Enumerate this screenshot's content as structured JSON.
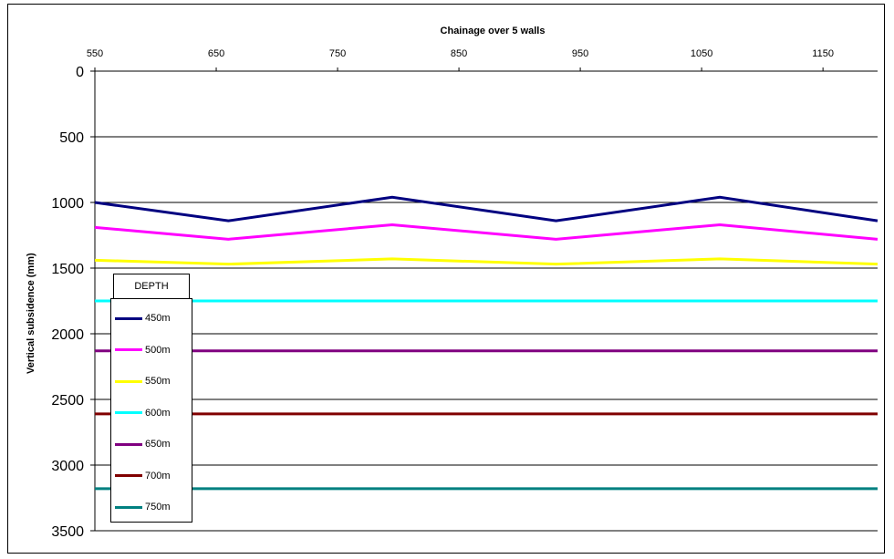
{
  "chart_data": {
    "type": "line",
    "title": "Chainage over 5 walls",
    "xlabel": "Chainage over 5 walls",
    "ylabel": "Vertical subsidence (mm)",
    "x_ticks": [
      "550",
      "650",
      "750",
      "850",
      "950",
      "1050",
      "1150"
    ],
    "y_ticks": [
      "0",
      "500",
      "1000",
      "1500",
      "2000",
      "2500",
      "3000",
      "3500"
    ],
    "xlim": [
      550,
      1195
    ],
    "ylim": [
      0,
      3500
    ],
    "y_inverted": true,
    "x_axis_position": "top",
    "grid": "horizontal",
    "legend": {
      "title": "DEPTH",
      "position": "bottom-left"
    },
    "x": [
      550,
      660,
      795,
      930,
      1065,
      1195
    ],
    "series": [
      {
        "name": "450m",
        "color": "#000080",
        "values": [
          1000,
          1140,
          960,
          1140,
          960,
          1140
        ]
      },
      {
        "name": "500m",
        "color": "#ff00ff",
        "values": [
          1190,
          1280,
          1170,
          1280,
          1170,
          1280
        ]
      },
      {
        "name": "550m",
        "color": "#ffff00",
        "values": [
          1440,
          1470,
          1430,
          1470,
          1430,
          1470
        ]
      },
      {
        "name": "600m",
        "color": "#00ffff",
        "values": [
          1750,
          1750,
          1750,
          1750,
          1750,
          1750
        ]
      },
      {
        "name": "650m",
        "color": "#800080",
        "values": [
          2130,
          2130,
          2130,
          2130,
          2130,
          2130
        ]
      },
      {
        "name": "700m",
        "color": "#800000",
        "values": [
          2610,
          2610,
          2610,
          2610,
          2610,
          2610
        ]
      },
      {
        "name": "750m",
        "color": "#008080",
        "values": [
          3180,
          3180,
          3180,
          3180,
          3180,
          3180
        ]
      }
    ]
  }
}
